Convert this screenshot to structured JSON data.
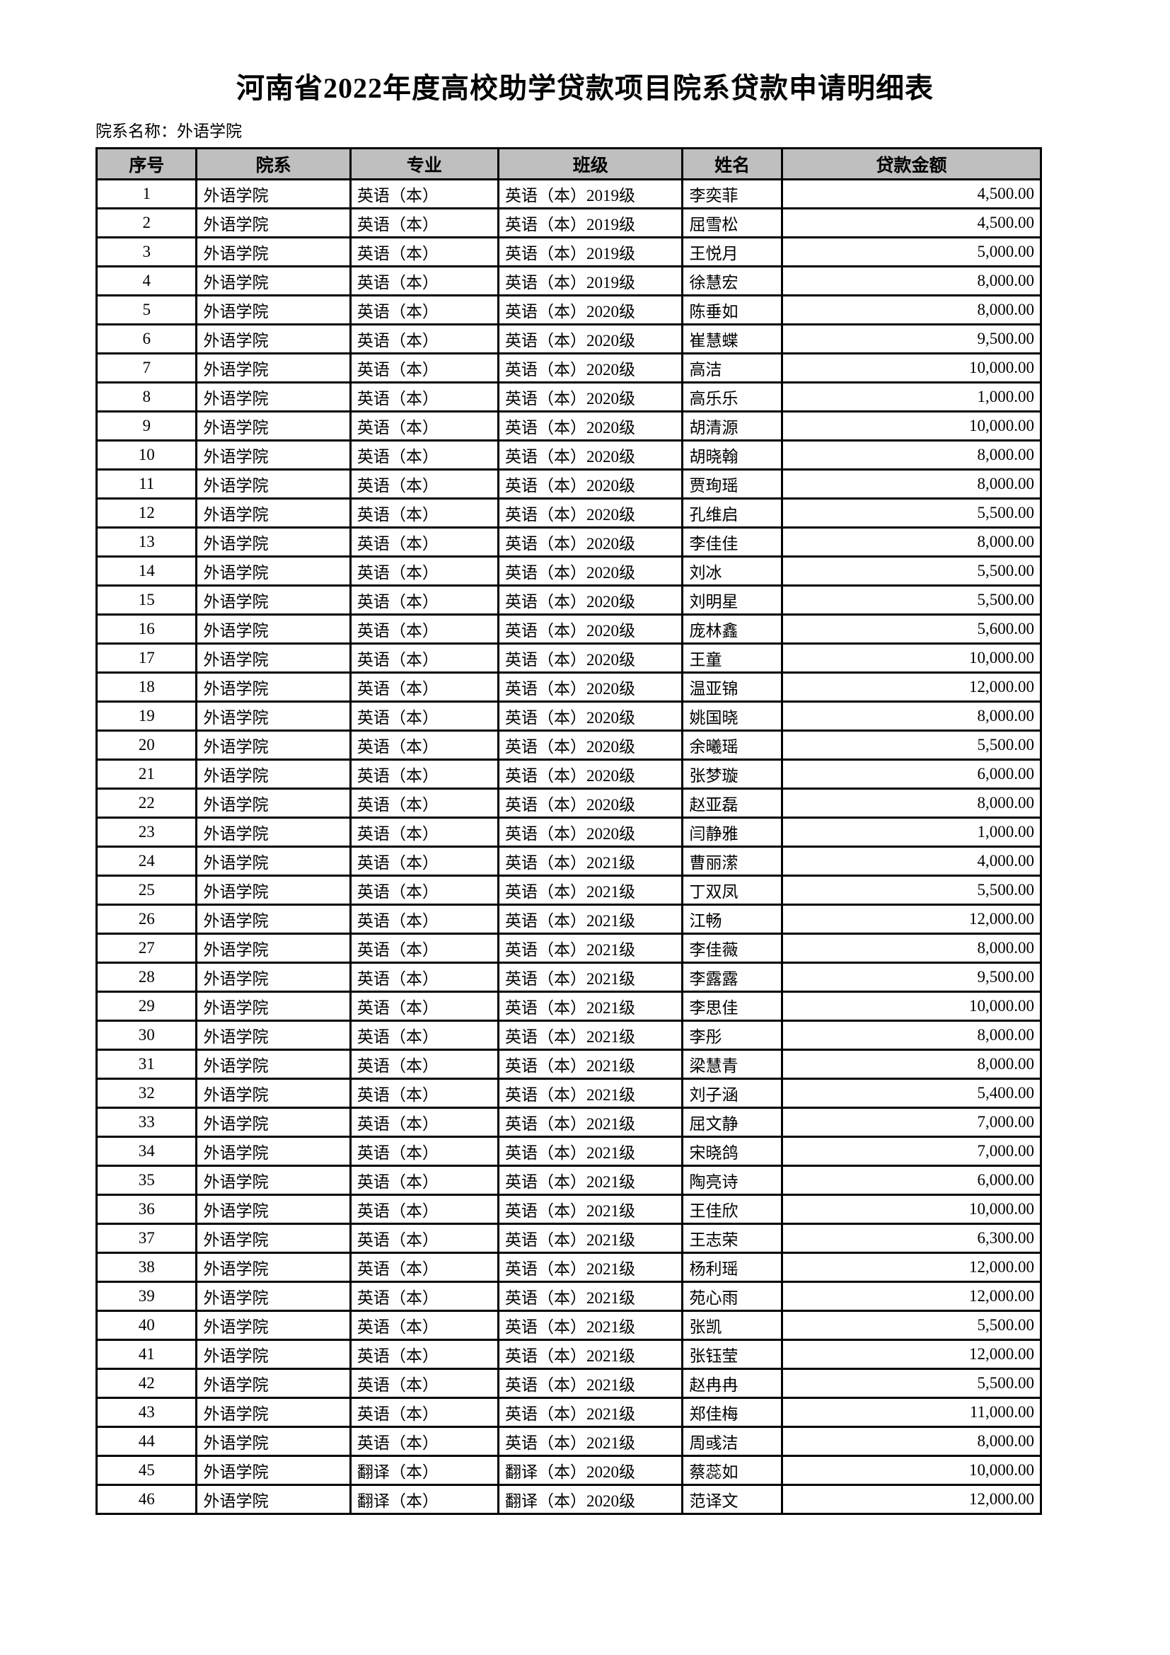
{
  "page": {
    "title": "河南省2022年度高校助学贷款项目院系贷款申请明细表",
    "dept_line": {
      "label": "院系名称：",
      "value": "外语学院"
    }
  },
  "table": {
    "headers": [
      "序号",
      "院系",
      "专业",
      "班级",
      "姓名",
      "贷款金额"
    ],
    "rows": [
      [
        "1",
        "外语学院",
        "英语（本）",
        "英语（本）2019级",
        "李奕菲",
        "4,500.00"
      ],
      [
        "2",
        "外语学院",
        "英语（本）",
        "英语（本）2019级",
        "屈雪松",
        "4,500.00"
      ],
      [
        "3",
        "外语学院",
        "英语（本）",
        "英语（本）2019级",
        "王悦月",
        "5,000.00"
      ],
      [
        "4",
        "外语学院",
        "英语（本）",
        "英语（本）2019级",
        "徐慧宏",
        "8,000.00"
      ],
      [
        "5",
        "外语学院",
        "英语（本）",
        "英语（本）2020级",
        "陈垂如",
        "8,000.00"
      ],
      [
        "6",
        "外语学院",
        "英语（本）",
        "英语（本）2020级",
        "崔慧蝶",
        "9,500.00"
      ],
      [
        "7",
        "外语学院",
        "英语（本）",
        "英语（本）2020级",
        "高洁",
        "10,000.00"
      ],
      [
        "8",
        "外语学院",
        "英语（本）",
        "英语（本）2020级",
        "高乐乐",
        "1,000.00"
      ],
      [
        "9",
        "外语学院",
        "英语（本）",
        "英语（本）2020级",
        "胡清源",
        "10,000.00"
      ],
      [
        "10",
        "外语学院",
        "英语（本）",
        "英语（本）2020级",
        "胡晓翰",
        "8,000.00"
      ],
      [
        "11",
        "外语学院",
        "英语（本）",
        "英语（本）2020级",
        "贾珣瑶",
        "8,000.00"
      ],
      [
        "12",
        "外语学院",
        "英语（本）",
        "英语（本）2020级",
        "孔维启",
        "5,500.00"
      ],
      [
        "13",
        "外语学院",
        "英语（本）",
        "英语（本）2020级",
        "李佳佳",
        "8,000.00"
      ],
      [
        "14",
        "外语学院",
        "英语（本）",
        "英语（本）2020级",
        "刘冰",
        "5,500.00"
      ],
      [
        "15",
        "外语学院",
        "英语（本）",
        "英语（本）2020级",
        "刘明星",
        "5,500.00"
      ],
      [
        "16",
        "外语学院",
        "英语（本）",
        "英语（本）2020级",
        "庞林鑫",
        "5,600.00"
      ],
      [
        "17",
        "外语学院",
        "英语（本）",
        "英语（本）2020级",
        "王童",
        "10,000.00"
      ],
      [
        "18",
        "外语学院",
        "英语（本）",
        "英语（本）2020级",
        "温亚锦",
        "12,000.00"
      ],
      [
        "19",
        "外语学院",
        "英语（本）",
        "英语（本）2020级",
        "姚国晓",
        "8,000.00"
      ],
      [
        "20",
        "外语学院",
        "英语（本）",
        "英语（本）2020级",
        "余曦瑶",
        "5,500.00"
      ],
      [
        "21",
        "外语学院",
        "英语（本）",
        "英语（本）2020级",
        "张梦璇",
        "6,000.00"
      ],
      [
        "22",
        "外语学院",
        "英语（本）",
        "英语（本）2020级",
        "赵亚磊",
        "8,000.00"
      ],
      [
        "23",
        "外语学院",
        "英语（本）",
        "英语（本）2020级",
        "闫静雅",
        "1,000.00"
      ],
      [
        "24",
        "外语学院",
        "英语（本）",
        "英语（本）2021级",
        "曹丽潆",
        "4,000.00"
      ],
      [
        "25",
        "外语学院",
        "英语（本）",
        "英语（本）2021级",
        "丁双凤",
        "5,500.00"
      ],
      [
        "26",
        "外语学院",
        "英语（本）",
        "英语（本）2021级",
        "江畅",
        "12,000.00"
      ],
      [
        "27",
        "外语学院",
        "英语（本）",
        "英语（本）2021级",
        "李佳薇",
        "8,000.00"
      ],
      [
        "28",
        "外语学院",
        "英语（本）",
        "英语（本）2021级",
        "李露露",
        "9,500.00"
      ],
      [
        "29",
        "外语学院",
        "英语（本）",
        "英语（本）2021级",
        "李思佳",
        "10,000.00"
      ],
      [
        "30",
        "外语学院",
        "英语（本）",
        "英语（本）2021级",
        "李彤",
        "8,000.00"
      ],
      [
        "31",
        "外语学院",
        "英语（本）",
        "英语（本）2021级",
        "梁慧青",
        "8,000.00"
      ],
      [
        "32",
        "外语学院",
        "英语（本）",
        "英语（本）2021级",
        "刘子涵",
        "5,400.00"
      ],
      [
        "33",
        "外语学院",
        "英语（本）",
        "英语（本）2021级",
        "屈文静",
        "7,000.00"
      ],
      [
        "34",
        "外语学院",
        "英语（本）",
        "英语（本）2021级",
        "宋晓鸽",
        "7,000.00"
      ],
      [
        "35",
        "外语学院",
        "英语（本）",
        "英语（本）2021级",
        "陶亮诗",
        "6,000.00"
      ],
      [
        "36",
        "外语学院",
        "英语（本）",
        "英语（本）2021级",
        "王佳欣",
        "10,000.00"
      ],
      [
        "37",
        "外语学院",
        "英语（本）",
        "英语（本）2021级",
        "王志荣",
        "6,300.00"
      ],
      [
        "38",
        "外语学院",
        "英语（本）",
        "英语（本）2021级",
        "杨利瑶",
        "12,000.00"
      ],
      [
        "39",
        "外语学院",
        "英语（本）",
        "英语（本）2021级",
        "苑心雨",
        "12,000.00"
      ],
      [
        "40",
        "外语学院",
        "英语（本）",
        "英语（本）2021级",
        "张凯",
        "5,500.00"
      ],
      [
        "41",
        "外语学院",
        "英语（本）",
        "英语（本）2021级",
        "张钰莹",
        "12,000.00"
      ],
      [
        "42",
        "外语学院",
        "英语（本）",
        "英语（本）2021级",
        "赵冉冉",
        "5,500.00"
      ],
      [
        "43",
        "外语学院",
        "英语（本）",
        "英语（本）2021级",
        "郑佳梅",
        "11,000.00"
      ],
      [
        "44",
        "外语学院",
        "英语（本）",
        "英语（本）2021级",
        "周彧洁",
        "8,000.00"
      ],
      [
        "45",
        "外语学院",
        "翻译（本）",
        "翻译（本）2020级",
        "蔡蕊如",
        "10,000.00"
      ],
      [
        "46",
        "外语学院",
        "翻译（本）",
        "翻译（本）2020级",
        "范译文",
        "12,000.00"
      ]
    ]
  }
}
